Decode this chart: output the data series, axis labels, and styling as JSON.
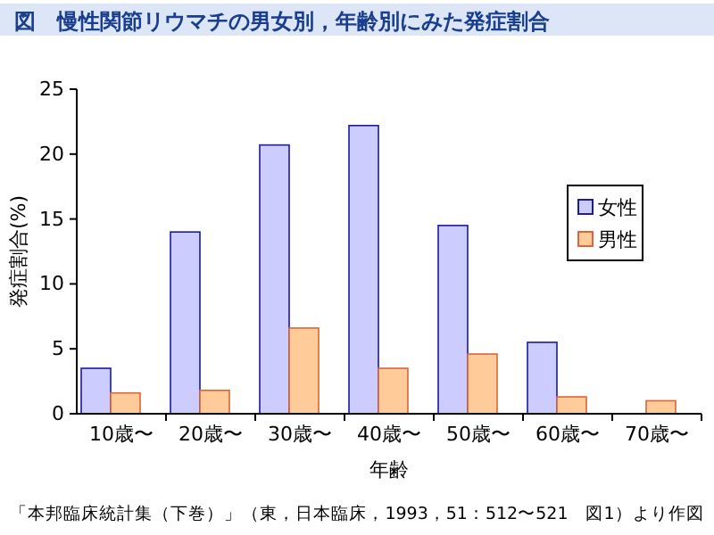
{
  "chart_data": {
    "type": "bar",
    "title": "図　慢性関節リウマチの男女別，年齢別にみた発症割合",
    "xlabel": "年齢",
    "ylabel": "発症割合(%)",
    "categories": [
      "10歳〜",
      "20歳〜",
      "30歳〜",
      "40歳〜",
      "50歳〜",
      "60歳〜",
      "70歳〜"
    ],
    "series": [
      {
        "name": "女性",
        "color": "#ccccff",
        "values": [
          3.5,
          14.0,
          20.7,
          22.2,
          14.5,
          5.5,
          null
        ]
      },
      {
        "name": "男性",
        "color": "#ffcc99",
        "values": [
          1.6,
          1.8,
          6.6,
          3.5,
          4.6,
          1.3,
          1.0
        ]
      }
    ],
    "ylim": [
      0,
      25
    ],
    "yticks": [
      0,
      5,
      10,
      15,
      20,
      25
    ],
    "grid": false,
    "legend": "right",
    "annotations": [
      "「本邦臨床統計集（下巻）」（東，日本臨床，1993，51：512〜521　図1）より作図"
    ]
  }
}
